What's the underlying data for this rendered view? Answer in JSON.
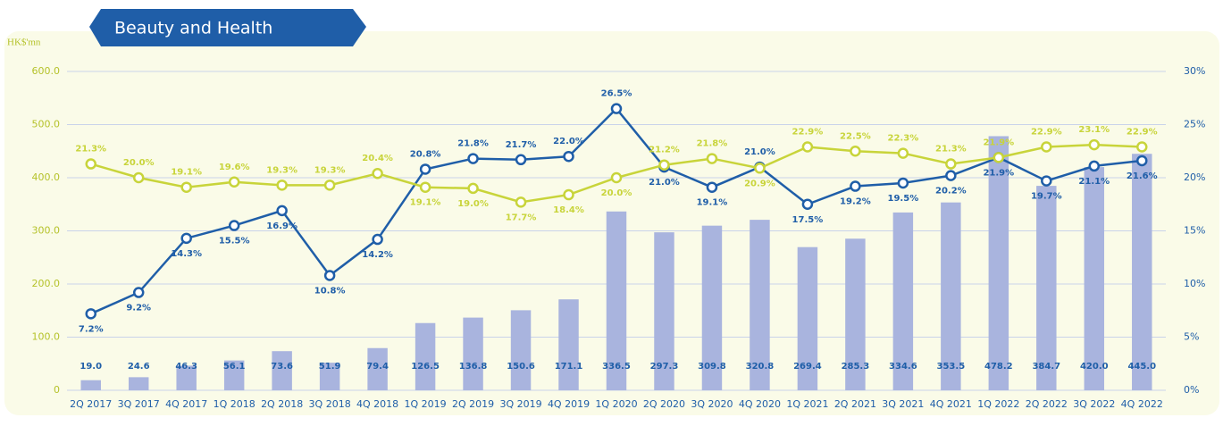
{
  "chart_data": {
    "type": "bar",
    "title": "Beauty and Health",
    "y_label": "HK$'mn",
    "categories": [
      "2Q 2017",
      "3Q 2017",
      "4Q 2017",
      "1Q 2018",
      "2Q 2018",
      "3Q 2018",
      "4Q 2018",
      "1Q 2019",
      "2Q 2019",
      "3Q 2019",
      "4Q 2019",
      "1Q 2020",
      "2Q 2020",
      "3Q 2020",
      "4Q 2020",
      "1Q 2021",
      "2Q 2021",
      "3Q 2021",
      "4Q 2021",
      "1Q 2022",
      "2Q 2022",
      "3Q 2022",
      "4Q 2022"
    ],
    "series": [
      {
        "type": "bar",
        "color": "#a9b4de",
        "values": [
          19.0,
          24.6,
          46.3,
          56.1,
          73.6,
          51.9,
          79.4,
          126.5,
          136.8,
          150.6,
          171.1,
          336.5,
          297.3,
          309.8,
          320.8,
          269.4,
          285.3,
          334.6,
          353.5,
          478.2,
          384.7,
          420.0,
          445.0
        ],
        "value_labels": [
          "19.0",
          "24.6",
          "46.3",
          "56.1",
          "73.6",
          "51.9",
          "79.4",
          "126.5",
          "136.8",
          "150.6",
          "171.1",
          "336.5",
          "297.3",
          "309.8",
          "320.8",
          "269.4",
          "285.3",
          "334.6",
          "353.5",
          "478.2",
          "384.7",
          "420.0",
          "445.0"
        ]
      },
      {
        "type": "line",
        "axis": "y2",
        "color": "#1f5ea8",
        "values": [
          7.2,
          9.2,
          14.3,
          15.5,
          16.9,
          10.8,
          14.2,
          20.8,
          21.8,
          21.7,
          22.0,
          26.5,
          21.0,
          19.1,
          21.0,
          17.5,
          19.2,
          19.5,
          20.2,
          21.9,
          19.7,
          21.1,
          21.6
        ],
        "value_labels": [
          "7.2%",
          "9.2%",
          "14.3%",
          "15.5%",
          "16.9%",
          "10.8%",
          "14.2%",
          "20.8%",
          "21.8%",
          "21.7%",
          "22.0%",
          "26.5%",
          "21.0%",
          "19.1%",
          "21.0%",
          "17.5%",
          "19.2%",
          "19.5%",
          "20.2%",
          "21.9%",
          "19.7%",
          "21.1%",
          "21.6%"
        ]
      },
      {
        "type": "line",
        "axis": "y2",
        "color": "#c8d43a",
        "values": [
          21.3,
          20.0,
          19.1,
          19.6,
          19.3,
          19.3,
          20.4,
          19.1,
          19.0,
          17.7,
          18.4,
          20.0,
          21.2,
          21.8,
          20.9,
          22.9,
          22.5,
          22.3,
          21.3,
          21.9,
          22.9,
          23.1,
          22.9
        ],
        "value_labels": [
          "21.3%",
          "20.0%",
          "19.1%",
          "19.6%",
          "19.3%",
          "19.3%",
          "20.4%",
          "19.1%",
          "19.0%",
          "17.7%",
          "18.4%",
          "20.0%",
          "21.2%",
          "21.8%",
          "20.9%",
          "22.9%",
          "22.5%",
          "22.3%",
          "21.3%",
          "21.9%",
          "22.9%",
          "23.1%",
          "22.9%"
        ]
      }
    ],
    "ylim": [
      0,
      600
    ],
    "yticks": [
      0,
      {
        "value": 100,
        "label": "100.0"
      },
      {
        "value": 200,
        "label": "200.0"
      },
      {
        "value": 300,
        "label": "300.0"
      },
      {
        "value": 400,
        "label": "400.0"
      },
      {
        "value": 500,
        "label": "500.0"
      },
      {
        "value": 600,
        "label": "600.0"
      }
    ],
    "y2lim": [
      0,
      30
    ],
    "y2ticks": [
      {
        "value": 0,
        "label": "0%"
      },
      {
        "value": 5,
        "label": "5%"
      },
      {
        "value": 10,
        "label": "10%"
      },
      {
        "value": 15,
        "label": "15%"
      },
      {
        "value": 20,
        "label": "20%"
      },
      {
        "value": 25,
        "label": "25%"
      },
      {
        "value": 30,
        "label": "30%"
      }
    ],
    "grid": true
  }
}
